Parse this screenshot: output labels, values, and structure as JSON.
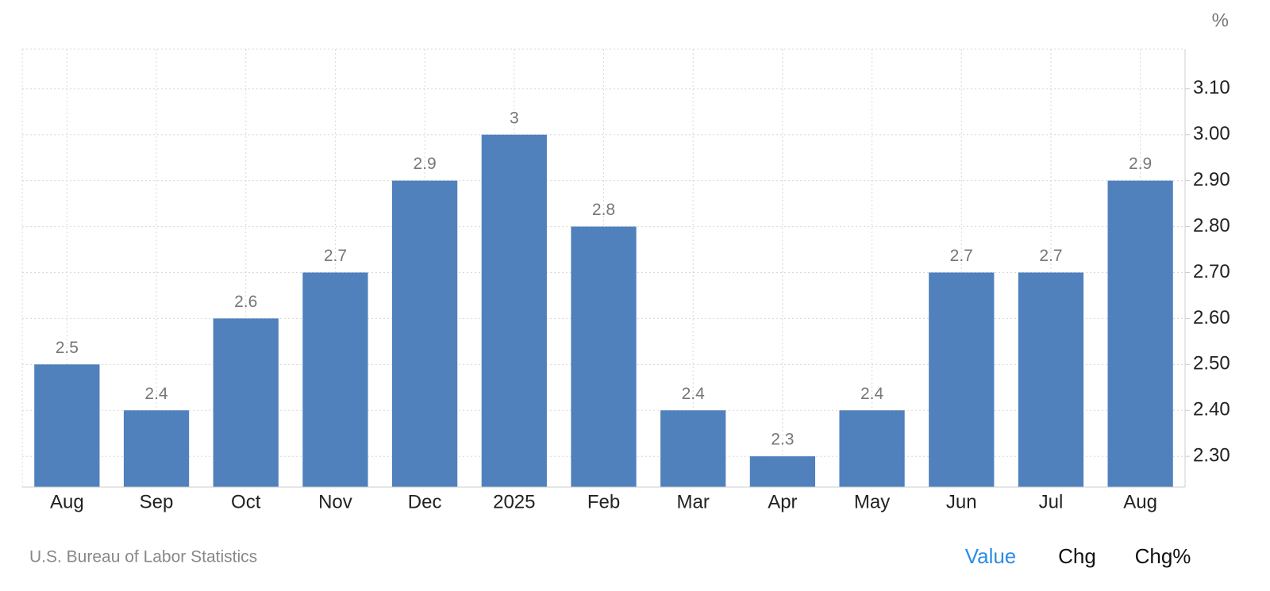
{
  "chart_data": {
    "type": "bar",
    "unit": "%",
    "categories": [
      "Aug",
      "Sep",
      "Oct",
      "Nov",
      "Dec",
      "2025",
      "Feb",
      "Mar",
      "Apr",
      "May",
      "Jun",
      "Jul",
      "Aug"
    ],
    "values": [
      2.5,
      2.4,
      2.6,
      2.7,
      2.9,
      3,
      2.8,
      2.4,
      2.3,
      2.4,
      2.7,
      2.7,
      2.9
    ],
    "color": "#5081bd",
    "ylim": [
      2.233,
      3.186
    ],
    "yticks": [
      {
        "value": 2.3,
        "label": "2.30"
      },
      {
        "value": 2.4,
        "label": "2.40"
      },
      {
        "value": 2.5,
        "label": "2.50"
      },
      {
        "value": 2.6,
        "label": "2.60"
      },
      {
        "value": 2.7,
        "label": "2.70"
      },
      {
        "value": 2.8,
        "label": "2.80"
      },
      {
        "value": 2.9,
        "label": "2.90"
      },
      {
        "value": 3.0,
        "label": "3.00"
      },
      {
        "value": 3.1,
        "label": "3.10"
      }
    ],
    "grid": true,
    "source": "U.S. Bureau of Labor Statistics"
  },
  "controls": [
    "Value",
    "Chg",
    "Chg%"
  ]
}
